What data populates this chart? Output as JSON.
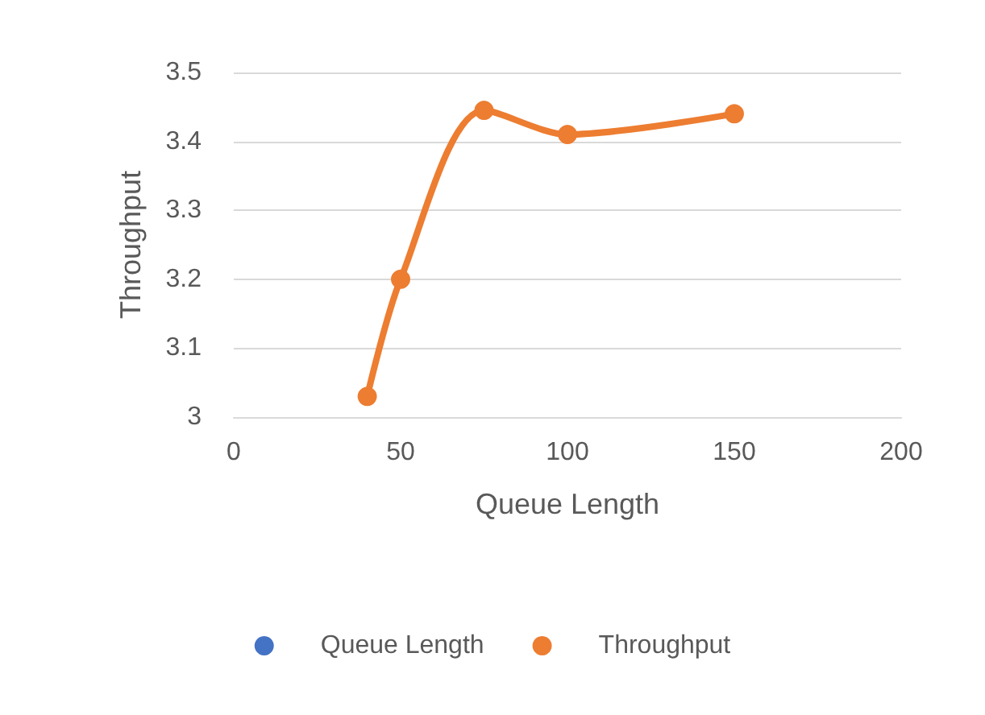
{
  "chart_data": {
    "type": "line",
    "xlabel": "Queue Length",
    "ylabel": "Throughput",
    "x": [
      40,
      50,
      75,
      100,
      150
    ],
    "series": [
      {
        "name": "Queue Length",
        "color": "#4472c4",
        "values": [
          null,
          null,
          null,
          null,
          null
        ]
      },
      {
        "name": "Throughput",
        "color": "#ed7d31",
        "values": [
          3.03,
          3.2,
          3.445,
          3.41,
          3.44
        ]
      }
    ],
    "xlim": [
      0,
      200
    ],
    "xticks": [
      0,
      50,
      100,
      150,
      200
    ],
    "ylim": [
      3,
      3.5
    ],
    "yticks": [
      3,
      3.1,
      3.2,
      3.3,
      3.4,
      3.5
    ],
    "grid": "y",
    "legend": "bottom",
    "marker": "circle",
    "line_style": "solid"
  }
}
